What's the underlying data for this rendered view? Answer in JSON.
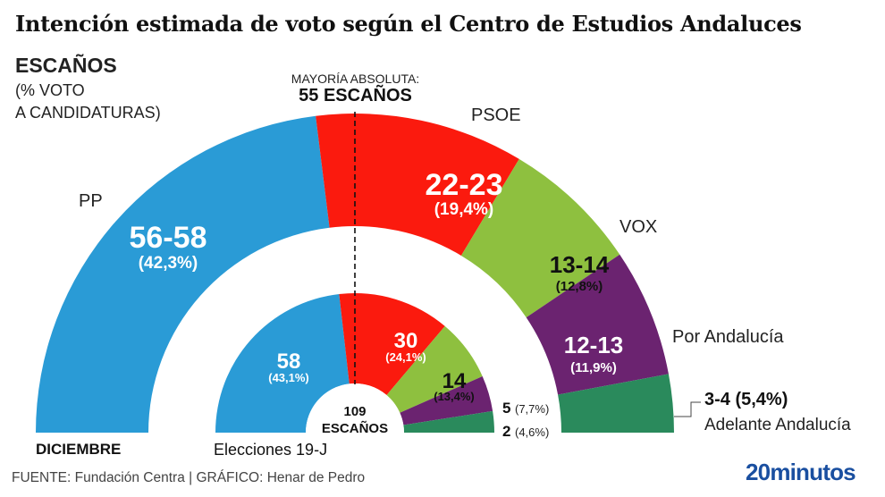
{
  "title": "Intención estimada de voto según el Centro de Estudios Andaluces",
  "legend_heading": {
    "main": "ESCAÑOS",
    "sub_line1": "(% VOTO",
    "sub_line2": "A CANDIDATURAS)"
  },
  "majority": {
    "line1": "MAYORÍA ABSOLUTA:",
    "line2": "55 ESCAÑOS"
  },
  "footer": {
    "source": "FUENTE: Fundación Centra  |  GRÁFICO: Henar de Pedro",
    "brand": "20minutos"
  },
  "chart_data": {
    "type": "pie",
    "subtype": "nested-semicircle (parliament)",
    "title": "Intención estimada de voto según el Centro de Estudios Andaluces",
    "total_seats": 109,
    "majority_seats": 55,
    "center_label": [
      "109",
      "ESCAÑOS"
    ],
    "series": [
      {
        "name": "DICIEMBRE",
        "ring": "outer",
        "slices": [
          {
            "party": "PP",
            "seats_label": "56-58",
            "seats": 57,
            "vote_pct": 42.3,
            "pct_label": "(42,3%)",
            "color": "#2a9bd6",
            "text_color": "#ffffff"
          },
          {
            "party": "PSOE",
            "seats_label": "22-23",
            "seats": 22.5,
            "vote_pct": 19.4,
            "pct_label": "(19,4%)",
            "color": "#fb1a0e",
            "text_color": "#ffffff"
          },
          {
            "party": "VOX",
            "seats_label": "13-14",
            "seats": 13.5,
            "vote_pct": 12.8,
            "pct_label": "(12,8%)",
            "color": "#8ec03f",
            "text_color": "#111111"
          },
          {
            "party": "Por Andalucía",
            "seats_label": "12-13",
            "seats": 12.5,
            "vote_pct": 11.9,
            "pct_label": "(11,9%)",
            "color": "#6b2370",
            "text_color": "#ffffff"
          },
          {
            "party": "Adelante Andalucía",
            "seats_label": "3-4",
            "seats": 3.5,
            "vote_pct": 5.4,
            "pct_label": "(5,4%)",
            "color": "#2a8a5c",
            "text_color": "#111111"
          }
        ]
      },
      {
        "name": "Elecciones 19-J",
        "ring": "inner",
        "slices": [
          {
            "party": "PP",
            "seats_label": "58",
            "seats": 58,
            "vote_pct": 43.1,
            "pct_label": "(43,1%)",
            "color": "#2a9bd6",
            "text_color": "#ffffff"
          },
          {
            "party": "PSOE",
            "seats_label": "30",
            "seats": 30,
            "vote_pct": 24.1,
            "pct_label": "(24,1%)",
            "color": "#fb1a0e",
            "text_color": "#ffffff"
          },
          {
            "party": "VOX",
            "seats_label": "14",
            "seats": 14,
            "vote_pct": 13.4,
            "pct_label": "(13,4%)",
            "color": "#8ec03f",
            "text_color": "#111111"
          },
          {
            "party": "Por Andalucía",
            "seats_label": "5",
            "seats": 5,
            "vote_pct": 7.7,
            "pct_label": "(7,7%)",
            "color": "#6b2370",
            "text_color": "#111111"
          },
          {
            "party": "Adelante Andalucía",
            "seats_label": "2",
            "seats": 2,
            "vote_pct": 4.6,
            "pct_label": "(4,6%)",
            "color": "#2a8a5c",
            "text_color": "#111111"
          }
        ]
      }
    ],
    "party_labels": [
      "PP",
      "PSOE",
      "VOX",
      "Por Andalucía",
      "Adelante Andalucía"
    ],
    "series_labels": [
      "DICIEMBRE",
      "Elecciones 19-J"
    ]
  }
}
